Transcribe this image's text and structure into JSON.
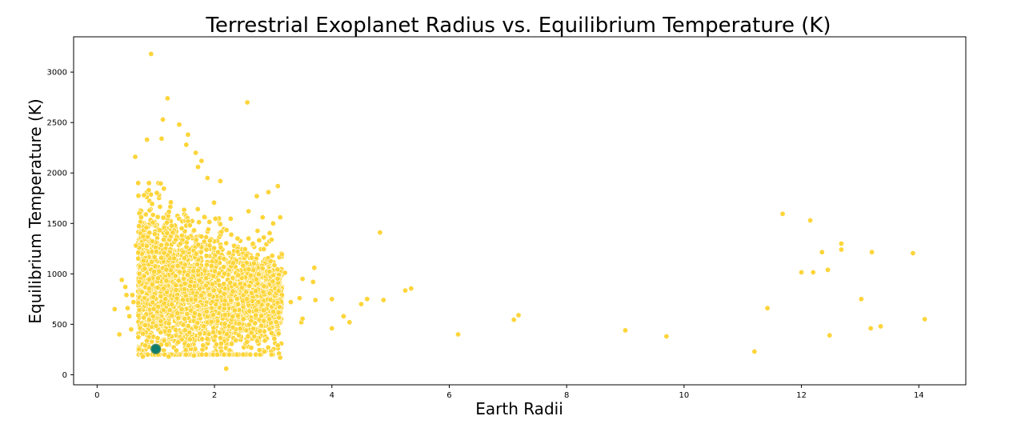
{
  "chart_data": {
    "type": "scatter",
    "title": "Terrestrial Exoplanet Radius vs. Equilibrium Temperature (K)",
    "xlabel": "Earth Radii",
    "ylabel": "Equilibrium Temperature (K)",
    "xlim": [
      -0.4,
      14.8
    ],
    "ylim": [
      -100,
      3350
    ],
    "xticks": [
      "0",
      "2",
      "4",
      "6",
      "8",
      "10",
      "12",
      "14"
    ],
    "yticks": [
      "0",
      "500",
      "1000",
      "1500",
      "2000",
      "2500",
      "3000"
    ],
    "grid": false,
    "colors": {
      "points": "#fdd53a",
      "highlight": "#0f7d6e",
      "highlight_edge": "#5a8f5a"
    },
    "highlight_point": {
      "x": 1.0,
      "y": 255
    },
    "outliers": [
      [
        0.92,
        3180
      ],
      [
        1.2,
        2740
      ],
      [
        2.56,
        2700
      ],
      [
        1.12,
        2530
      ],
      [
        1.4,
        2480
      ],
      [
        1.55,
        2380
      ],
      [
        0.85,
        2330
      ],
      [
        1.1,
        2340
      ],
      [
        0.65,
        2160
      ],
      [
        1.52,
        2280
      ],
      [
        1.68,
        2200
      ],
      [
        1.78,
        2120
      ],
      [
        1.72,
        2060
      ],
      [
        2.1,
        1920
      ],
      [
        1.88,
        1950
      ],
      [
        3.08,
        1870
      ],
      [
        2.92,
        1810
      ],
      [
        2.72,
        1770
      ],
      [
        3.12,
        1560
      ],
      [
        3.0,
        1500
      ],
      [
        2.82,
        1560
      ],
      [
        2.58,
        1620
      ],
      [
        0.3,
        650
      ],
      [
        0.38,
        400
      ],
      [
        0.42,
        940
      ],
      [
        0.48,
        870
      ],
      [
        0.5,
        790
      ],
      [
        0.52,
        660
      ],
      [
        0.55,
        580
      ],
      [
        0.58,
        450
      ],
      [
        0.6,
        790
      ],
      [
        0.62,
        720
      ],
      [
        0.66,
        1280
      ],
      [
        0.7,
        1210
      ],
      [
        0.72,
        1600
      ],
      [
        0.75,
        1560
      ],
      [
        0.78,
        180
      ],
      [
        0.8,
        1780
      ],
      [
        0.82,
        290
      ],
      [
        0.88,
        1830
      ],
      [
        0.95,
        1510
      ],
      [
        1.15,
        200
      ],
      [
        1.22,
        180
      ],
      [
        1.35,
        240
      ],
      [
        1.65,
        190
      ],
      [
        2.2,
        60
      ],
      [
        2.25,
        200
      ],
      [
        3.1,
        210
      ],
      [
        3.12,
        170
      ],
      [
        3.2,
        1010
      ],
      [
        3.3,
        720
      ],
      [
        3.45,
        760
      ],
      [
        3.48,
        520
      ],
      [
        3.5,
        555
      ],
      [
        3.5,
        950
      ],
      [
        3.68,
        920
      ],
      [
        3.7,
        1060
      ],
      [
        3.72,
        740
      ],
      [
        4.0,
        460
      ],
      [
        4.0,
        750
      ],
      [
        4.2,
        580
      ],
      [
        4.3,
        520
      ],
      [
        4.5,
        700
      ],
      [
        4.6,
        750
      ],
      [
        4.82,
        1410
      ],
      [
        4.88,
        740
      ],
      [
        5.25,
        835
      ],
      [
        5.35,
        855
      ],
      [
        6.15,
        400
      ],
      [
        7.1,
        545
      ],
      [
        7.18,
        590
      ],
      [
        9.0,
        440
      ],
      [
        9.7,
        380
      ],
      [
        11.2,
        230
      ],
      [
        11.42,
        660
      ],
      [
        11.68,
        1595
      ],
      [
        12.0,
        1015
      ],
      [
        12.15,
        1530
      ],
      [
        12.2,
        1015
      ],
      [
        12.35,
        1215
      ],
      [
        12.45,
        1040
      ],
      [
        12.48,
        390
      ],
      [
        12.68,
        1300
      ],
      [
        12.68,
        1240
      ],
      [
        13.02,
        750
      ],
      [
        13.18,
        460
      ],
      [
        13.2,
        1215
      ],
      [
        13.35,
        480
      ],
      [
        13.9,
        1205
      ],
      [
        14.1,
        550
      ]
    ],
    "cluster_summary": {
      "x_range": [
        0.7,
        3.15
      ],
      "y_range": [
        200,
        1400
      ],
      "y_center": 750,
      "count": 2800
    }
  }
}
